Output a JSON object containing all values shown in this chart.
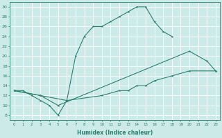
{
  "line1_x": [
    0,
    1,
    2,
    3,
    4,
    5,
    6,
    7,
    8,
    9,
    10,
    11,
    12,
    13,
    14,
    15,
    16,
    17,
    18
  ],
  "line1_y": [
    13,
    13,
    12,
    11,
    10,
    8,
    11,
    20,
    24,
    26,
    26,
    27,
    28,
    29,
    30,
    30,
    27,
    25,
    24
  ],
  "line2_x": [
    0,
    3,
    5,
    20,
    22,
    23
  ],
  "line2_y": [
    13,
    12,
    10,
    21,
    19,
    17
  ],
  "line3_x": [
    0,
    3,
    6,
    10,
    12,
    13,
    14,
    15,
    16,
    18,
    20,
    23
  ],
  "line3_y": [
    13,
    12,
    11,
    12,
    13,
    13,
    14,
    14,
    15,
    16,
    17,
    17
  ],
  "color": "#2a7f6f",
  "bg_color": "#cceae8",
  "grid_color": "#ffffff",
  "xlabel": "Humidex (Indice chaleur)",
  "xlim": [
    -0.5,
    23.5
  ],
  "ylim": [
    7,
    31
  ],
  "yticks": [
    8,
    10,
    12,
    14,
    16,
    18,
    20,
    22,
    24,
    26,
    28,
    30
  ],
  "xticks": [
    0,
    1,
    2,
    3,
    4,
    5,
    6,
    7,
    8,
    9,
    10,
    11,
    12,
    13,
    14,
    15,
    16,
    17,
    18,
    19,
    20,
    21,
    22,
    23
  ]
}
